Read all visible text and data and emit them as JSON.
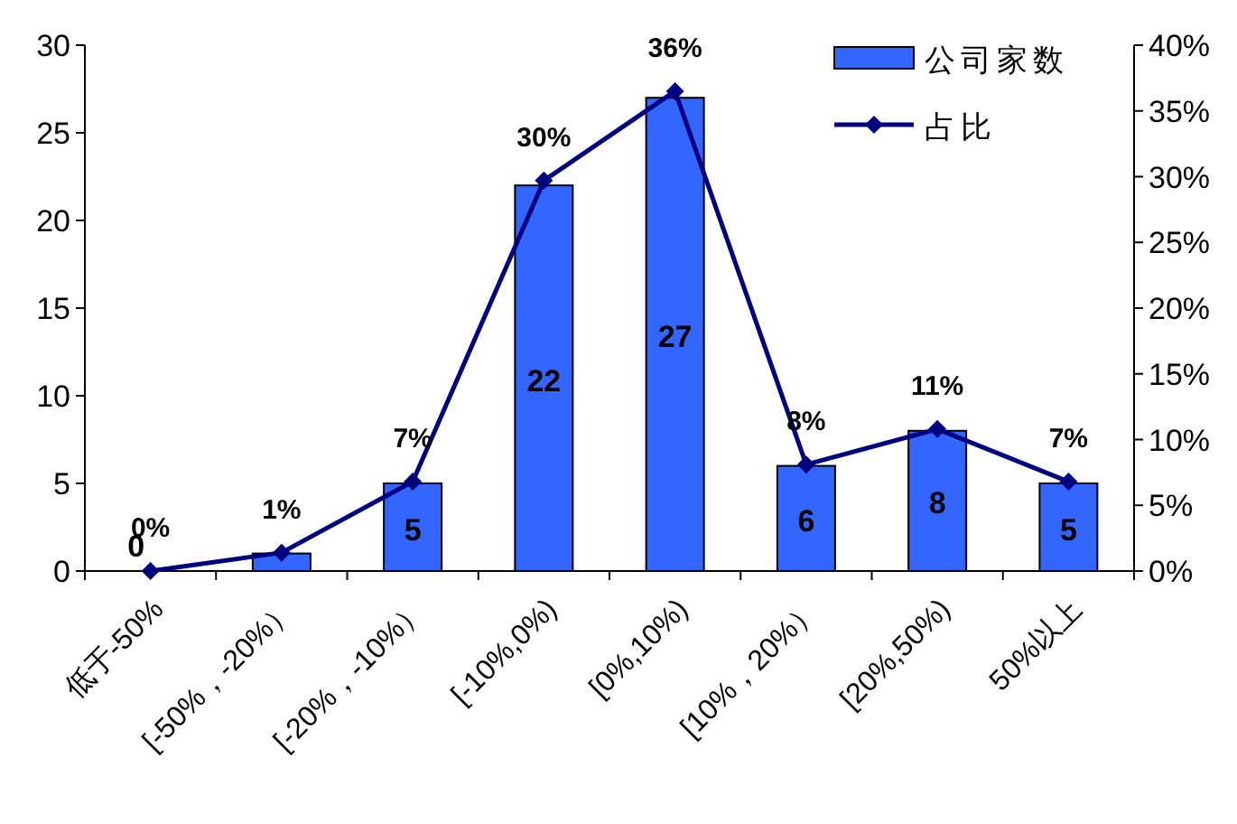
{
  "chart_data": {
    "type": "bar",
    "categories": [
      "低于-50%",
      "[-50%，-20%）",
      "[-20%，-10%）",
      "[-10%,0%)",
      "[0%,10%)",
      "[10%，20%）",
      "[20%,50%)",
      "50%以上"
    ],
    "series": [
      {
        "name": "公司家数",
        "color": "#3366ff",
        "values": [
          0,
          1,
          5,
          22,
          27,
          6,
          8,
          5
        ],
        "value_labels": [
          "0",
          null,
          "5",
          "22",
          "27",
          "6",
          "8",
          "5"
        ]
      },
      {
        "name": "占比",
        "type": "line",
        "axis": "y2",
        "color": "#000080",
        "marker": "diamond",
        "values": [
          0,
          1.4,
          6.8,
          29.7,
          36.5,
          8.1,
          10.8,
          6.8
        ],
        "value_labels": [
          "0%",
          "1%",
          "7%",
          "30%",
          "36%",
          "8%",
          "11%",
          "7%"
        ]
      }
    ],
    "ylim": [
      0,
      30
    ],
    "yticks": [
      0,
      5,
      10,
      15,
      20,
      25,
      30
    ],
    "y2lim": [
      0,
      40
    ],
    "y2ticks": [
      {
        "value": 0,
        "label": "0%"
      },
      {
        "value": 5,
        "label": "5%"
      },
      {
        "value": 10,
        "label": "10%"
      },
      {
        "value": 15,
        "label": "15%"
      },
      {
        "value": 20,
        "label": "20%"
      },
      {
        "value": 25,
        "label": "25%"
      },
      {
        "value": 30,
        "label": "30%"
      },
      {
        "value": 35,
        "label": "35%"
      },
      {
        "value": 40,
        "label": "40%"
      }
    ],
    "legend": "top right",
    "grid": false
  }
}
